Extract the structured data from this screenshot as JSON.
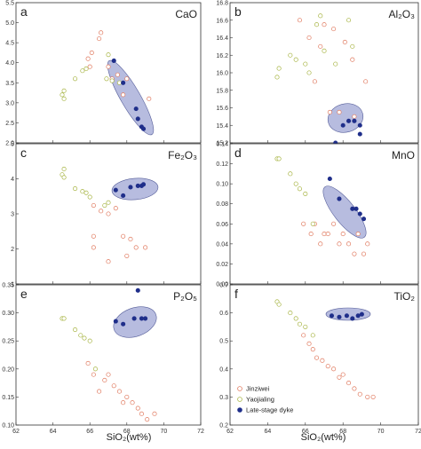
{
  "figure": {
    "x_axis_label": "SiO₂(wt%)"
  },
  "legend": {
    "placement": "inside panel f, bottom-left",
    "entries": [
      {
        "label": "Jinziwei",
        "marker": "open-circle",
        "color": "#e07a5f"
      },
      {
        "label": "Yaojialing",
        "marker": "open-circle",
        "color": "#a8b545"
      },
      {
        "label": "Late-stage dyke",
        "marker": "filled-circle",
        "color": "#1f2e8a"
      }
    ]
  },
  "colors": {
    "jinziwei": "#e07a5f",
    "yaojialing": "#a8b545",
    "dyke_fill": "#1f2e8a",
    "dyke_field": "#9fa6d4"
  },
  "chart_data": [
    {
      "type": "scatter",
      "panel": "a",
      "title": "CaO",
      "xlim": [
        62,
        72
      ],
      "ylim": [
        2.0,
        5.5
      ],
      "xticks": [],
      "yticks": [
        "2.0",
        "2.5",
        "3.0",
        "3.5",
        "4.0",
        "4.5",
        "5.0",
        "5.5"
      ],
      "series": [
        {
          "name": "Jinziwei",
          "points": [
            [
              65.9,
              4.1
            ],
            [
              66.1,
              4.25
            ],
            [
              66.5,
              4.6
            ],
            [
              66.6,
              4.75
            ],
            [
              67.2,
              3.6
            ],
            [
              67.5,
              3.7
            ],
            [
              67.8,
              3.2
            ],
            [
              68.0,
              3.6
            ],
            [
              69.2,
              3.1
            ],
            [
              66.0,
              3.9
            ],
            [
              67.0,
              3.9
            ]
          ]
        },
        {
          "name": "Yaojialing",
          "points": [
            [
              64.5,
              3.2
            ],
            [
              64.6,
              3.1
            ],
            [
              64.6,
              3.3
            ],
            [
              65.2,
              3.6
            ],
            [
              65.6,
              3.8
            ],
            [
              65.8,
              3.85
            ],
            [
              67.0,
              4.2
            ],
            [
              67.6,
              3.5
            ],
            [
              67.2,
              3.55
            ],
            [
              66.9,
              3.6
            ]
          ]
        },
        {
          "name": "Late-stage dyke",
          "points": [
            [
              67.3,
              4.05
            ],
            [
              67.8,
              3.5
            ],
            [
              68.5,
              2.85
            ],
            [
              68.6,
              2.6
            ],
            [
              68.8,
              2.4
            ],
            [
              68.9,
              2.35
            ]
          ]
        }
      ]
    },
    {
      "type": "scatter",
      "panel": "b",
      "title": "Al₂O₃",
      "xlim": [
        62,
        72
      ],
      "ylim": [
        15.2,
        16.8
      ],
      "xticks": [],
      "yticks": [
        "15.2",
        "15.4",
        "15.6",
        "15.8",
        "16.0",
        "16.2",
        "16.4",
        "16.6",
        "16.8"
      ],
      "series": [
        {
          "name": "Jinziwei",
          "points": [
            [
              65.7,
              16.6
            ],
            [
              66.2,
              16.4
            ],
            [
              66.8,
              16.3
            ],
            [
              67.0,
              16.55
            ],
            [
              67.5,
              16.5
            ],
            [
              68.1,
              16.35
            ],
            [
              68.5,
              16.15
            ],
            [
              69.2,
              15.9
            ],
            [
              66.5,
              15.9
            ],
            [
              67.3,
              15.55
            ],
            [
              67.8,
              15.55
            ],
            [
              68.6,
              15.5
            ]
          ]
        },
        {
          "name": "Yaojialing",
          "points": [
            [
              64.5,
              15.95
            ],
            [
              64.6,
              16.05
            ],
            [
              65.2,
              16.2
            ],
            [
              65.5,
              16.15
            ],
            [
              66.0,
              16.1
            ],
            [
              66.2,
              16.0
            ],
            [
              66.6,
              16.55
            ],
            [
              66.8,
              16.65
            ],
            [
              67.0,
              16.25
            ],
            [
              67.6,
              16.1
            ],
            [
              68.5,
              16.3
            ],
            [
              68.3,
              16.6
            ]
          ]
        },
        {
          "name": "Late-stage dyke",
          "points": [
            [
              67.6,
              15.2
            ],
            [
              68.0,
              15.4
            ],
            [
              68.3,
              15.45
            ],
            [
              68.6,
              15.45
            ],
            [
              68.9,
              15.3
            ],
            [
              68.9,
              15.4
            ]
          ]
        }
      ]
    },
    {
      "type": "scatter",
      "panel": "c",
      "title": "Fe₂O₃",
      "xlim": [
        62,
        72
      ],
      "ylim": [
        1,
        6
      ],
      "xticks": [],
      "yticks": [
        "1",
        "2",
        "3",
        "4",
        "5"
      ],
      "series": [
        {
          "name": "Jinziwei",
          "points": [
            [
              66.2,
              3.8
            ],
            [
              66.6,
              3.6
            ],
            [
              67.0,
              3.5
            ],
            [
              67.4,
              3.7
            ],
            [
              66.2,
              2.7
            ],
            [
              66.2,
              2.3
            ],
            [
              67.8,
              2.7
            ],
            [
              68.2,
              2.6
            ],
            [
              68.5,
              2.3
            ],
            [
              69.0,
              2.3
            ],
            [
              67.0,
              1.8
            ],
            [
              68.0,
              2.0
            ]
          ]
        },
        {
          "name": "Yaojialing",
          "points": [
            [
              64.5,
              4.9
            ],
            [
              64.6,
              5.1
            ],
            [
              64.6,
              4.8
            ],
            [
              65.2,
              4.4
            ],
            [
              65.6,
              4.3
            ],
            [
              65.8,
              4.25
            ],
            [
              66.0,
              4.1
            ],
            [
              66.8,
              3.8
            ],
            [
              67.0,
              3.9
            ]
          ]
        },
        {
          "name": "Late-stage dyke",
          "points": [
            [
              67.4,
              4.35
            ],
            [
              67.8,
              4.15
            ],
            [
              68.2,
              4.45
            ],
            [
              68.6,
              4.5
            ],
            [
              68.8,
              4.5
            ],
            [
              68.9,
              4.55
            ]
          ]
        }
      ]
    },
    {
      "type": "scatter",
      "panel": "d",
      "title": "MnO",
      "xlim": [
        62,
        72
      ],
      "ylim": [
        0.0,
        0.14
      ],
      "xticks": [],
      "yticks": [
        "0.00",
        "0.02",
        "0.04",
        "0.06",
        "0.08",
        "0.10",
        "0.12",
        "0.14"
      ],
      "series": [
        {
          "name": "Jinziwei",
          "points": [
            [
              65.9,
              0.06
            ],
            [
              66.3,
              0.05
            ],
            [
              66.5,
              0.06
            ],
            [
              66.8,
              0.04
            ],
            [
              67.0,
              0.05
            ],
            [
              67.2,
              0.05
            ],
            [
              67.5,
              0.06
            ],
            [
              67.8,
              0.04
            ],
            [
              68.0,
              0.05
            ],
            [
              68.3,
              0.04
            ],
            [
              68.6,
              0.03
            ],
            [
              68.8,
              0.05
            ],
            [
              69.1,
              0.03
            ],
            [
              69.3,
              0.04
            ]
          ]
        },
        {
          "name": "Yaojialing",
          "points": [
            [
              64.5,
              0.125
            ],
            [
              64.6,
              0.125
            ],
            [
              65.2,
              0.11
            ],
            [
              65.5,
              0.1
            ],
            [
              65.7,
              0.095
            ],
            [
              66.0,
              0.09
            ],
            [
              66.4,
              0.06
            ]
          ]
        },
        {
          "name": "Late-stage dyke",
          "points": [
            [
              67.3,
              0.105
            ],
            [
              67.8,
              0.085
            ],
            [
              68.5,
              0.075
            ],
            [
              68.7,
              0.075
            ],
            [
              68.9,
              0.07
            ],
            [
              69.1,
              0.065
            ]
          ]
        }
      ]
    },
    {
      "type": "scatter",
      "panel": "e",
      "title": "P₂O₅",
      "xlim": [
        62,
        72
      ],
      "ylim": [
        0.1,
        0.35
      ],
      "xticks": [
        "62",
        "64",
        "66",
        "68",
        "70",
        "72"
      ],
      "yticks": [
        "0.10",
        "0.15",
        "0.20",
        "0.25",
        "0.30",
        "0.35"
      ],
      "series": [
        {
          "name": "Jinziwei",
          "points": [
            [
              65.9,
              0.21
            ],
            [
              66.2,
              0.19
            ],
            [
              66.5,
              0.16
            ],
            [
              66.8,
              0.18
            ],
            [
              67.0,
              0.19
            ],
            [
              67.3,
              0.17
            ],
            [
              67.6,
              0.16
            ],
            [
              67.8,
              0.14
            ],
            [
              68.0,
              0.15
            ],
            [
              68.3,
              0.14
            ],
            [
              68.6,
              0.13
            ],
            [
              68.8,
              0.12
            ],
            [
              69.1,
              0.11
            ],
            [
              69.5,
              0.12
            ]
          ]
        },
        {
          "name": "Yaojialing",
          "points": [
            [
              64.5,
              0.29
            ],
            [
              64.6,
              0.29
            ],
            [
              65.2,
              0.27
            ],
            [
              65.5,
              0.26
            ],
            [
              65.7,
              0.255
            ],
            [
              66.0,
              0.25
            ],
            [
              66.3,
              0.2
            ]
          ]
        },
        {
          "name": "Late-stage dyke",
          "points": [
            [
              67.4,
              0.285
            ],
            [
              67.8,
              0.28
            ],
            [
              68.4,
              0.29
            ],
            [
              68.6,
              0.34
            ],
            [
              68.8,
              0.29
            ],
            [
              69.0,
              0.29
            ]
          ]
        }
      ]
    },
    {
      "type": "scatter",
      "panel": "f",
      "title": "TiO₂",
      "xlim": [
        62,
        72
      ],
      "ylim": [
        0.2,
        0.7
      ],
      "xticks": [
        "62",
        "64",
        "66",
        "68",
        "70",
        "72"
      ],
      "yticks": [
        "0.2",
        "0.3",
        "0.4",
        "0.5",
        "0.6",
        "0.7"
      ],
      "series": [
        {
          "name": "Jinziwei",
          "points": [
            [
              65.9,
              0.52
            ],
            [
              66.2,
              0.49
            ],
            [
              66.4,
              0.47
            ],
            [
              66.6,
              0.44
            ],
            [
              66.9,
              0.43
            ],
            [
              67.2,
              0.41
            ],
            [
              67.5,
              0.4
            ],
            [
              67.8,
              0.37
            ],
            [
              68.0,
              0.38
            ],
            [
              68.3,
              0.35
            ],
            [
              68.6,
              0.33
            ],
            [
              68.9,
              0.31
            ],
            [
              69.3,
              0.3
            ],
            [
              69.6,
              0.3
            ]
          ]
        },
        {
          "name": "Yaojialing",
          "points": [
            [
              64.5,
              0.64
            ],
            [
              64.6,
              0.63
            ],
            [
              65.2,
              0.6
            ],
            [
              65.5,
              0.58
            ],
            [
              65.7,
              0.56
            ],
            [
              66.0,
              0.55
            ],
            [
              66.4,
              0.52
            ]
          ]
        },
        {
          "name": "Late-stage dyke",
          "points": [
            [
              67.4,
              0.59
            ],
            [
              67.8,
              0.585
            ],
            [
              68.2,
              0.59
            ],
            [
              68.5,
              0.58
            ],
            [
              68.8,
              0.59
            ],
            [
              69.0,
              0.595
            ]
          ]
        }
      ]
    }
  ]
}
